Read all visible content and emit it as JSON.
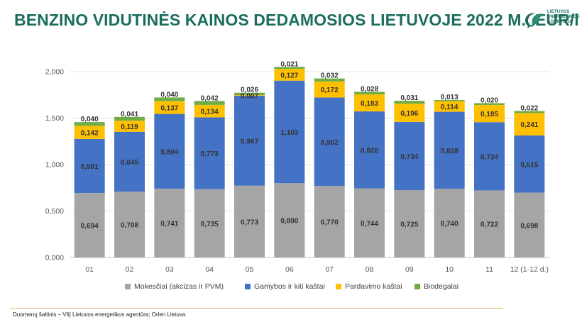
{
  "title": "BENZINO VIDUTINĖS KAINOS DEDAMOSIOS LIETUVOJE 2022 M., EUR/l",
  "logo": {
    "lines": [
      "LIETUVOS",
      "ENERGETIKOS",
      "AGENTŪRA"
    ]
  },
  "source": "Duomenų šaltinis – VšĮ Lietuvos energetikos agentūra; Orlen Lietuva",
  "chart_data": {
    "type": "bar",
    "stacked": true,
    "categories": [
      "01",
      "02",
      "03",
      "04",
      "05",
      "06",
      "07",
      "08",
      "09",
      "10",
      "11",
      "12 (1-12 d.)"
    ],
    "series": [
      {
        "name": "Mokesčiai (akcizas ir PVM)",
        "color": "#a5a5a5",
        "values": [
          0.694,
          0.708,
          0.741,
          0.735,
          0.773,
          0.8,
          0.77,
          0.744,
          0.725,
          0.74,
          0.722,
          0.698
        ],
        "labels": [
          "0,694",
          "0,708",
          "0,741",
          "0,735",
          "0,773",
          "0,800",
          "0,770",
          "0,744",
          "0,725",
          "0,740",
          "0,722",
          "0,698"
        ]
      },
      {
        "name": "Gamybos ir kiti kaštai",
        "color": "#4472c4",
        "values": [
          0.581,
          0.645,
          0.804,
          0.773,
          0.967,
          1.103,
          0.952,
          0.828,
          0.734,
          0.828,
          0.734,
          0.615
        ],
        "labels": [
          "0,581",
          "0,645",
          "0,804",
          "0,773",
          "0,967",
          "1,103",
          "0,952",
          "0,828",
          "0,734",
          "0,828",
          "0,734",
          "0,615"
        ]
      },
      {
        "name": "Pardavimo kaštai",
        "color": "#ffc000",
        "values": [
          0.142,
          0.119,
          0.137,
          0.134,
          0.007,
          0.127,
          0.172,
          0.183,
          0.196,
          0.114,
          0.185,
          0.241
        ],
        "labels": [
          "0,142",
          "0,119",
          "0,137",
          "0,134",
          "0,007",
          "0,127",
          "0,172",
          "0,183",
          "0,196",
          "0,114",
          "0,185",
          "0,241"
        ]
      },
      {
        "name": "Biodegalai",
        "color": "#70ad47",
        "values": [
          0.04,
          0.041,
          0.04,
          0.042,
          0.026,
          0.021,
          0.032,
          0.028,
          0.031,
          0.013,
          0.02,
          0.022
        ],
        "labels": [
          "0,040",
          "0,041",
          "0,040",
          "0,042",
          "0,026",
          "0,021",
          "0,032",
          "0,028",
          "0,031",
          "0,013",
          "0,020",
          "0,022"
        ]
      }
    ],
    "yticks": [
      "0,000",
      "0,500",
      "1,000",
      "1,500",
      "2,000"
    ],
    "ytick_values": [
      0,
      0.5,
      1.0,
      1.5,
      2.0
    ],
    "ylim": [
      0,
      2.0
    ],
    "grid": true,
    "legend": "bottom",
    "title": "",
    "xlabel": "",
    "ylabel": ""
  }
}
